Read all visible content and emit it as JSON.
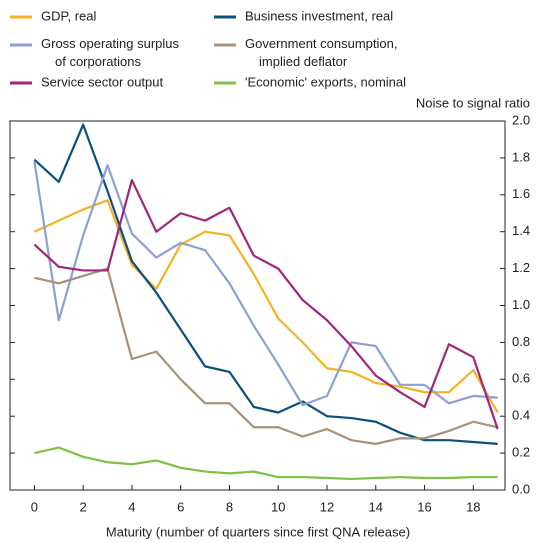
{
  "chart_data": {
    "type": "line",
    "y_label": "Noise to signal ratio",
    "x_label": "Maturity (number of quarters since first QNA release)",
    "x": [
      0,
      1,
      2,
      3,
      4,
      5,
      6,
      7,
      8,
      9,
      10,
      11,
      12,
      13,
      14,
      15,
      16,
      17,
      18,
      19
    ],
    "xlim": [
      -1,
      19.3
    ],
    "xticks": [
      0,
      2,
      4,
      6,
      8,
      10,
      12,
      14,
      16,
      18
    ],
    "ylim": [
      0,
      2.0
    ],
    "yticks": [
      {
        "value": 0,
        "label": "0.0"
      },
      {
        "value": 0.2,
        "label": "0.2"
      },
      {
        "value": 0.4,
        "label": "0.4"
      },
      {
        "value": 0.6,
        "label": "0.6"
      },
      {
        "value": 0.8,
        "label": "0.8"
      },
      {
        "value": 1.0,
        "label": "1.0"
      },
      {
        "value": 1.2,
        "label": "1.2"
      },
      {
        "value": 1.4,
        "label": "1.4"
      },
      {
        "value": 1.6,
        "label": "1.6"
      },
      {
        "value": 1.8,
        "label": "1.8"
      },
      {
        "value": 2.0,
        "label": "2.0"
      }
    ],
    "series": [
      {
        "name": "GDP, real",
        "color": "#f5b324",
        "values": [
          1.4,
          1.46,
          1.52,
          1.57,
          1.22,
          1.09,
          1.33,
          1.4,
          1.38,
          1.17,
          0.93,
          0.8,
          0.66,
          0.64,
          0.58,
          0.56,
          0.53,
          0.53,
          0.65,
          0.42
        ]
      },
      {
        "name": "Business investment, real",
        "color": "#0b4f7c",
        "values": [
          1.79,
          1.67,
          1.98,
          1.62,
          1.24,
          1.07,
          0.87,
          0.67,
          0.64,
          0.45,
          0.42,
          0.48,
          0.4,
          0.39,
          0.37,
          0.31,
          0.27,
          0.27,
          0.26,
          0.25
        ]
      },
      {
        "name": "Gross operating surplus\nof corporations",
        "color": "#8e9fd4",
        "values": [
          1.78,
          0.92,
          1.38,
          1.76,
          1.39,
          1.26,
          1.34,
          1.3,
          1.12,
          0.89,
          0.68,
          0.46,
          0.51,
          0.8,
          0.78,
          0.57,
          0.57,
          0.47,
          0.51,
          0.5
        ]
      },
      {
        "name": "Government consumption,\nimplied deflator",
        "color": "#a8917a",
        "values": [
          1.15,
          1.12,
          1.16,
          1.2,
          0.71,
          0.75,
          0.6,
          0.47,
          0.47,
          0.34,
          0.34,
          0.29,
          0.33,
          0.27,
          0.25,
          0.28,
          0.28,
          0.32,
          0.37,
          0.34
        ]
      },
      {
        "name": "Service sector output",
        "color": "#a1267a",
        "values": [
          1.33,
          1.21,
          1.19,
          1.19,
          1.68,
          1.4,
          1.5,
          1.46,
          1.53,
          1.27,
          1.2,
          1.03,
          0.92,
          0.78,
          0.62,
          0.53,
          0.45,
          0.79,
          0.72,
          0.33
        ]
      },
      {
        "name": "'Economic' exports, nominal",
        "color": "#7dc242",
        "values": [
          0.2,
          0.23,
          0.18,
          0.15,
          0.14,
          0.16,
          0.12,
          0.1,
          0.09,
          0.1,
          0.07,
          0.07,
          0.065,
          0.06,
          0.065,
          0.07,
          0.065,
          0.065,
          0.07,
          0.07
        ]
      }
    ]
  }
}
